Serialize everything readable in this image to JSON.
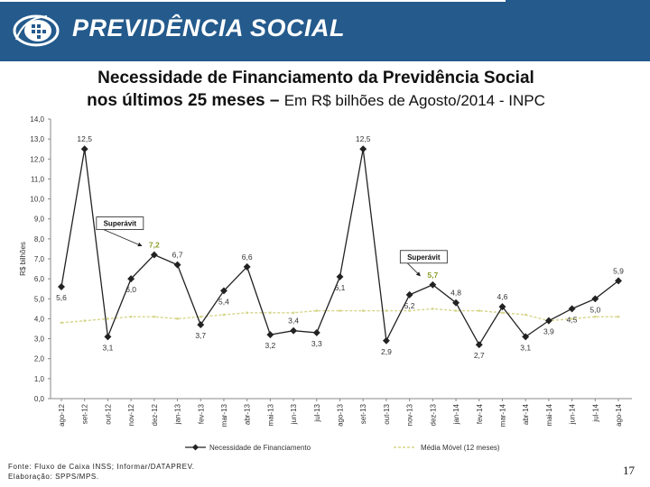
{
  "header": {
    "brand": "PREVIDÊNCIA SOCIAL"
  },
  "slide": {
    "title_line1": "Necessidade de Financiamento da Previdência Social",
    "title_line2_bold": "nos últimos 25 meses – ",
    "title_line2_rest": "Em R$ bilhões de Agosto/2014 - INPC"
  },
  "chart_data": {
    "type": "line",
    "ylabel": "R$ bilhões",
    "ylim": [
      0,
      14
    ],
    "yticks": [
      "0,0",
      "1,0",
      "2,0",
      "3,0",
      "4,0",
      "5,0",
      "6,0",
      "7,0",
      "8,0",
      "9,0",
      "10,0",
      "11,0",
      "12,0",
      "13,0",
      "14,0"
    ],
    "categories": [
      "ago-12",
      "set-12",
      "out-12",
      "nov-12",
      "dez-12",
      "jan-13",
      "fev-13",
      "mar-13",
      "abr-13",
      "mai-13",
      "jun-13",
      "jul-13",
      "ago-13",
      "set-13",
      "out-13",
      "nov-13",
      "dez-13",
      "jan-14",
      "fev-14",
      "mar-14",
      "abr-14",
      "mai-14",
      "jun-14",
      "jul-14",
      "ago-14"
    ],
    "series": [
      {
        "name": "Necessidade de Financiamento",
        "color": "#222222",
        "values": [
          5.6,
          12.5,
          3.1,
          6.0,
          7.2,
          6.7,
          3.7,
          5.4,
          6.6,
          3.2,
          3.4,
          3.3,
          6.1,
          12.5,
          2.9,
          5.2,
          5.7,
          4.8,
          2.7,
          4.6,
          3.1,
          3.9,
          4.5,
          5.0,
          5.9
        ],
        "labels": [
          "5,6",
          "12,5",
          "3,1",
          "6,0",
          "7,2",
          "6,7",
          "3,7",
          "5,4",
          "6,6",
          "3,2",
          "3,4",
          "3,3",
          "6,1",
          "12,5",
          "2,9",
          "5,2",
          "5,7",
          "4,8",
          "2,7",
          "4,6",
          "3,1",
          "3,9",
          "4,5",
          "5,0",
          "5,9"
        ]
      },
      {
        "name": "Média Móvel (12 meses)",
        "color": "#d6d58a",
        "values": [
          3.8,
          3.9,
          4.0,
          4.1,
          4.1,
          4.0,
          4.1,
          4.2,
          4.3,
          4.3,
          4.3,
          4.4,
          4.4,
          4.4,
          4.4,
          4.4,
          4.5,
          4.4,
          4.4,
          4.3,
          4.2,
          3.9,
          4.0,
          4.1,
          4.1
        ]
      }
    ],
    "annotations": [
      {
        "text": "Superávit",
        "points_to_index": 4
      },
      {
        "text": "Superávit",
        "points_to_index": 16
      }
    ],
    "highlight_color": "#8c9c28"
  },
  "footer": {
    "source_line1": "Fonte: Fluxo de Caixa INSS; Informar/DATAPREV.",
    "source_line2": "Elaboração: SPPS/MPS.",
    "page_number": "17"
  }
}
